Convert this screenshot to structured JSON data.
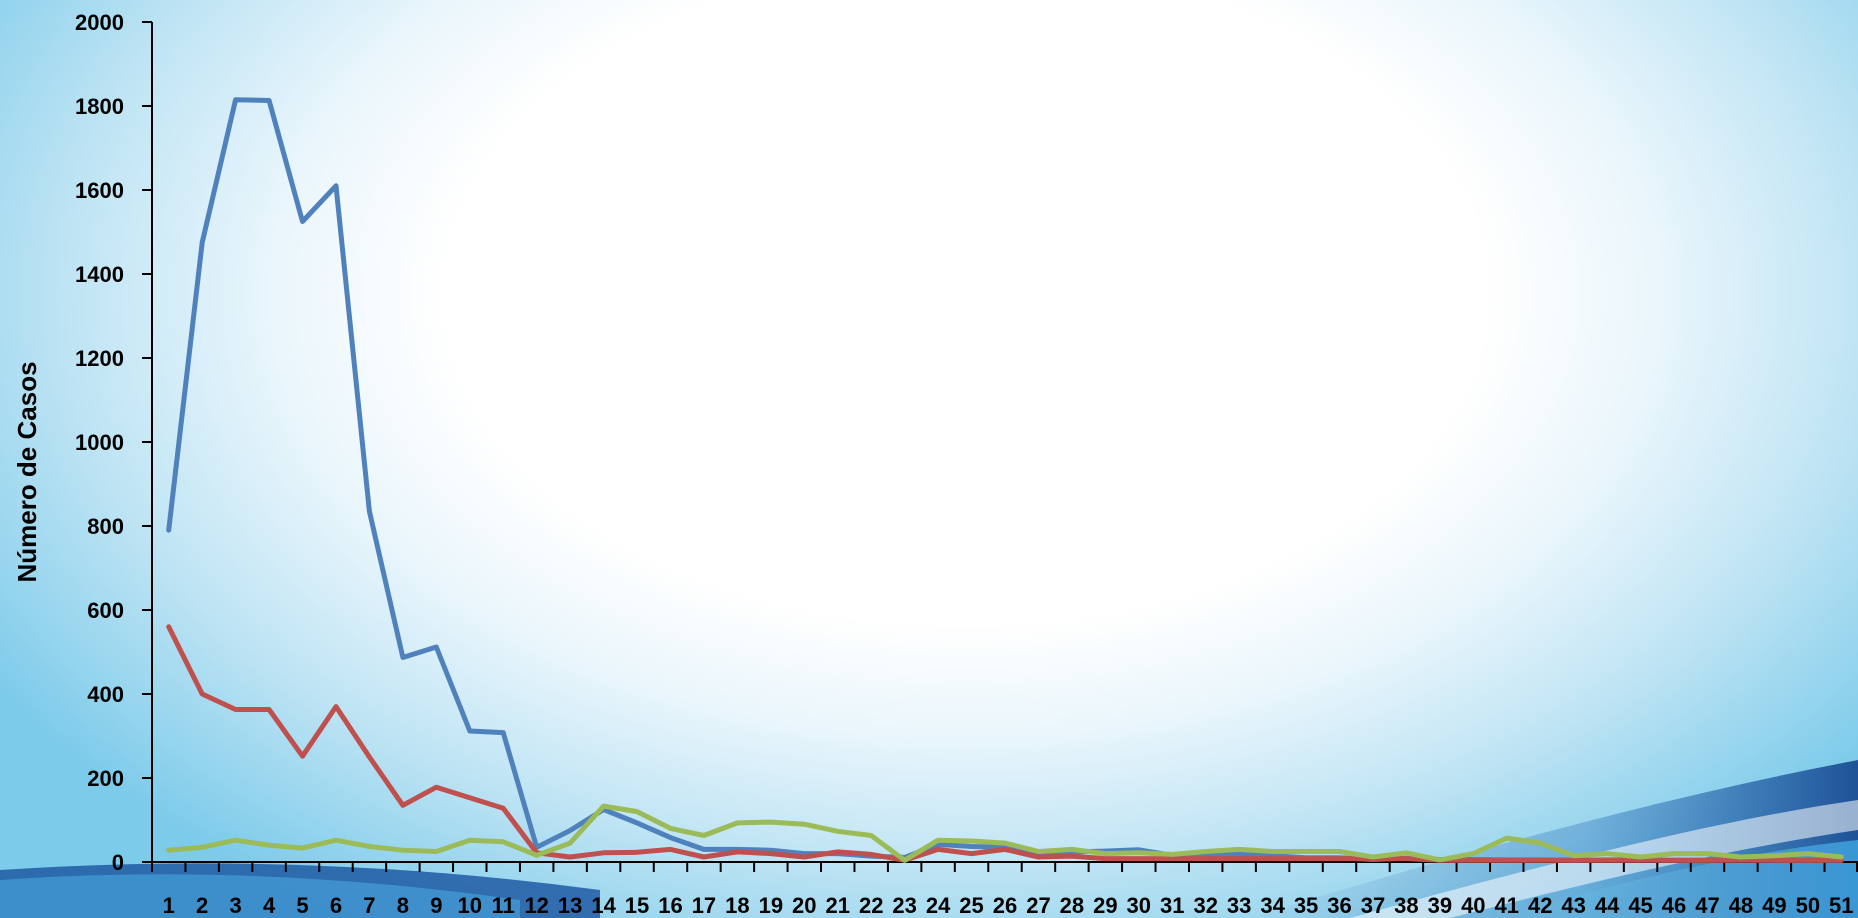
{
  "chart_data": {
    "type": "line",
    "title": "",
    "xlabel": "",
    "ylabel": "Número de Casos",
    "ylim": [
      0,
      2000
    ],
    "yticks": [
      0,
      200,
      400,
      600,
      800,
      1000,
      1200,
      1400,
      1600,
      1800,
      2000
    ],
    "categories": [
      "1",
      "2",
      "3",
      "4",
      "5",
      "6",
      "7",
      "8",
      "9",
      "10",
      "11",
      "12",
      "13",
      "14",
      "15",
      "16",
      "17",
      "18",
      "19",
      "20",
      "21",
      "22",
      "23",
      "24",
      "25",
      "26",
      "27",
      "28",
      "29",
      "30",
      "31",
      "32",
      "33",
      "34",
      "35",
      "36",
      "37",
      "38",
      "39",
      "40",
      "41",
      "42",
      "43",
      "44",
      "45",
      "46",
      "47",
      "48",
      "49",
      "50",
      "51"
    ],
    "grid": false,
    "legend": "none",
    "series": [
      {
        "color": "#4f81bd",
        "values": [
          790,
          1475,
          1815,
          1813,
          1525,
          1610,
          835,
          487,
          512,
          312,
          308,
          35,
          75,
          125,
          93,
          58,
          30,
          30,
          28,
          20,
          20,
          14,
          11,
          42,
          37,
          35,
          20,
          24,
          26,
          29,
          16,
          16,
          18,
          15,
          10,
          10,
          6,
          9,
          6,
          6,
          5,
          5,
          4,
          5,
          5,
          4,
          4,
          5,
          4,
          4,
          4
        ]
      },
      {
        "color": "#c0504d",
        "values": [
          560,
          400,
          363,
          363,
          252,
          370,
          250,
          135,
          178,
          153,
          128,
          22,
          12,
          22,
          23,
          30,
          12,
          24,
          20,
          12,
          24,
          18,
          4,
          30,
          20,
          30,
          12,
          14,
          8,
          8,
          8,
          8,
          8,
          8,
          8,
          8,
          8,
          8,
          4,
          4,
          4,
          4,
          4,
          4,
          4,
          4,
          4,
          4,
          4,
          4,
          4
        ]
      },
      {
        "color": "#9bbb59",
        "values": [
          28,
          35,
          52,
          40,
          33,
          52,
          37,
          28,
          25,
          52,
          48,
          16,
          45,
          133,
          120,
          80,
          63,
          93,
          95,
          90,
          73,
          63,
          4,
          52,
          50,
          45,
          25,
          30,
          20,
          22,
          18,
          25,
          30,
          25,
          25,
          25,
          12,
          22,
          5,
          20,
          57,
          45,
          15,
          20,
          12,
          20,
          20,
          12,
          15,
          20,
          12
        ]
      }
    ]
  }
}
